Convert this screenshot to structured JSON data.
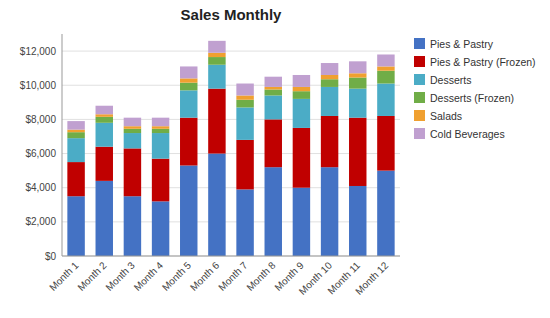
{
  "chart_data": {
    "type": "bar",
    "stacked": true,
    "title": "Sales Monthly",
    "categories": [
      "Month 1",
      "Month 2",
      "Month 3",
      "Month 4",
      "Month 5",
      "Month 6",
      "Month 7",
      "Month 8",
      "Month 9",
      "Month 10",
      "Month 11",
      "Month 12"
    ],
    "series": [
      {
        "name": "Pies & Pastry",
        "color": "#4472C4",
        "values": [
          3500,
          4400,
          3500,
          3200,
          5300,
          6000,
          3900,
          5200,
          4000,
          5200,
          4100,
          5000
        ]
      },
      {
        "name": "Pies & Pastry (Frozen)",
        "color": "#C00000",
        "values": [
          2000,
          2000,
          2800,
          2500,
          2800,
          3800,
          2900,
          2800,
          3500,
          3000,
          4000,
          3200
        ]
      },
      {
        "name": "Desserts",
        "color": "#4BACC6",
        "values": [
          1400,
          1400,
          900,
          1500,
          1600,
          1400,
          1900,
          1400,
          1700,
          1700,
          1700,
          1900
        ]
      },
      {
        "name": "Desserts (Frozen)",
        "color": "#70AD47",
        "values": [
          350,
          350,
          250,
          250,
          450,
          450,
          450,
          350,
          450,
          450,
          650,
          750
        ]
      },
      {
        "name": "Salads",
        "color": "#F0A030",
        "values": [
          150,
          150,
          150,
          150,
          250,
          250,
          250,
          150,
          250,
          250,
          250,
          250
        ]
      },
      {
        "name": "Cold Beverages",
        "color": "#C0A0D0",
        "values": [
          500,
          500,
          500,
          500,
          700,
          700,
          700,
          600,
          700,
          700,
          700,
          700
        ]
      }
    ],
    "ylim": [
      0,
      13000
    ],
    "yticks": [
      {
        "value": 0,
        "label": "$0"
      },
      {
        "value": 2000,
        "label": "$2,000"
      },
      {
        "value": 4000,
        "label": "$4,000"
      },
      {
        "value": 6000,
        "label": "$6,000"
      },
      {
        "value": 8000,
        "label": "$8,000"
      },
      {
        "value": 10000,
        "label": "$10,000"
      },
      {
        "value": 12000,
        "label": "$12,000"
      }
    ],
    "grid": true,
    "legend": "upper right"
  }
}
